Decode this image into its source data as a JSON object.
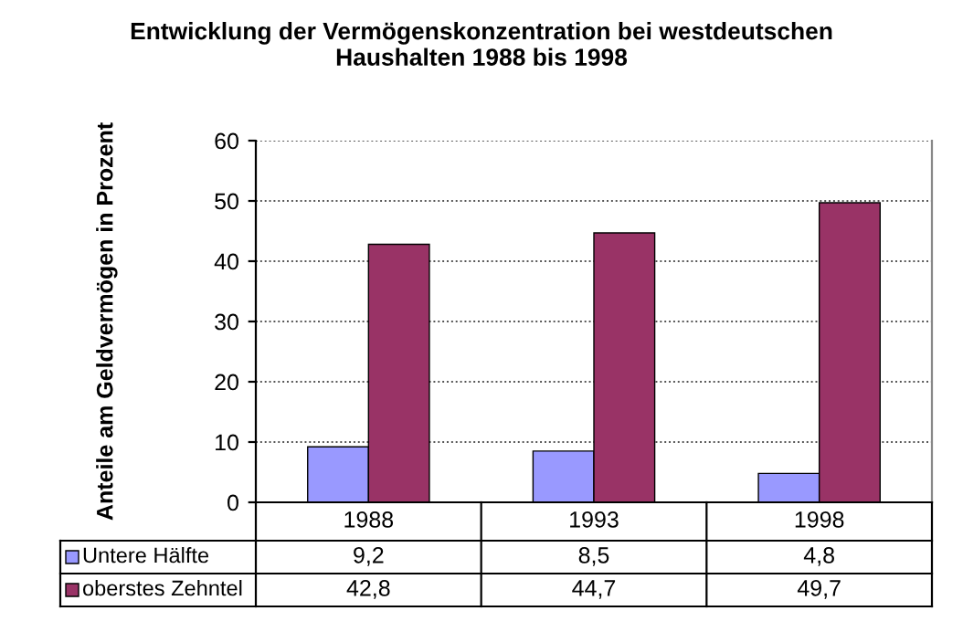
{
  "chart_data": {
    "type": "bar",
    "title": "Entwicklung der Vermögenskonzentration bei westdeutschen\nHaushalten 1988 bis 1998",
    "ylabel": "Anteile am Geldvermögen in Prozent",
    "categories": [
      "1988",
      "1993",
      "1998"
    ],
    "series": [
      {
        "name": "Untere Hälfte",
        "color": "#9999ff",
        "values": [
          9.2,
          8.5,
          4.8
        ],
        "value_labels": [
          "9,2",
          "8,5",
          "4,8"
        ]
      },
      {
        "name": "oberstes Zehntel",
        "color": "#993366",
        "values": [
          42.8,
          44.7,
          49.7
        ],
        "value_labels": [
          "42,8",
          "44,7",
          "49,7"
        ]
      }
    ],
    "ylim": [
      0,
      60
    ],
    "yticks": [
      0,
      10,
      20,
      30,
      40,
      50,
      60
    ],
    "grid": "y",
    "legend": "bottom"
  }
}
